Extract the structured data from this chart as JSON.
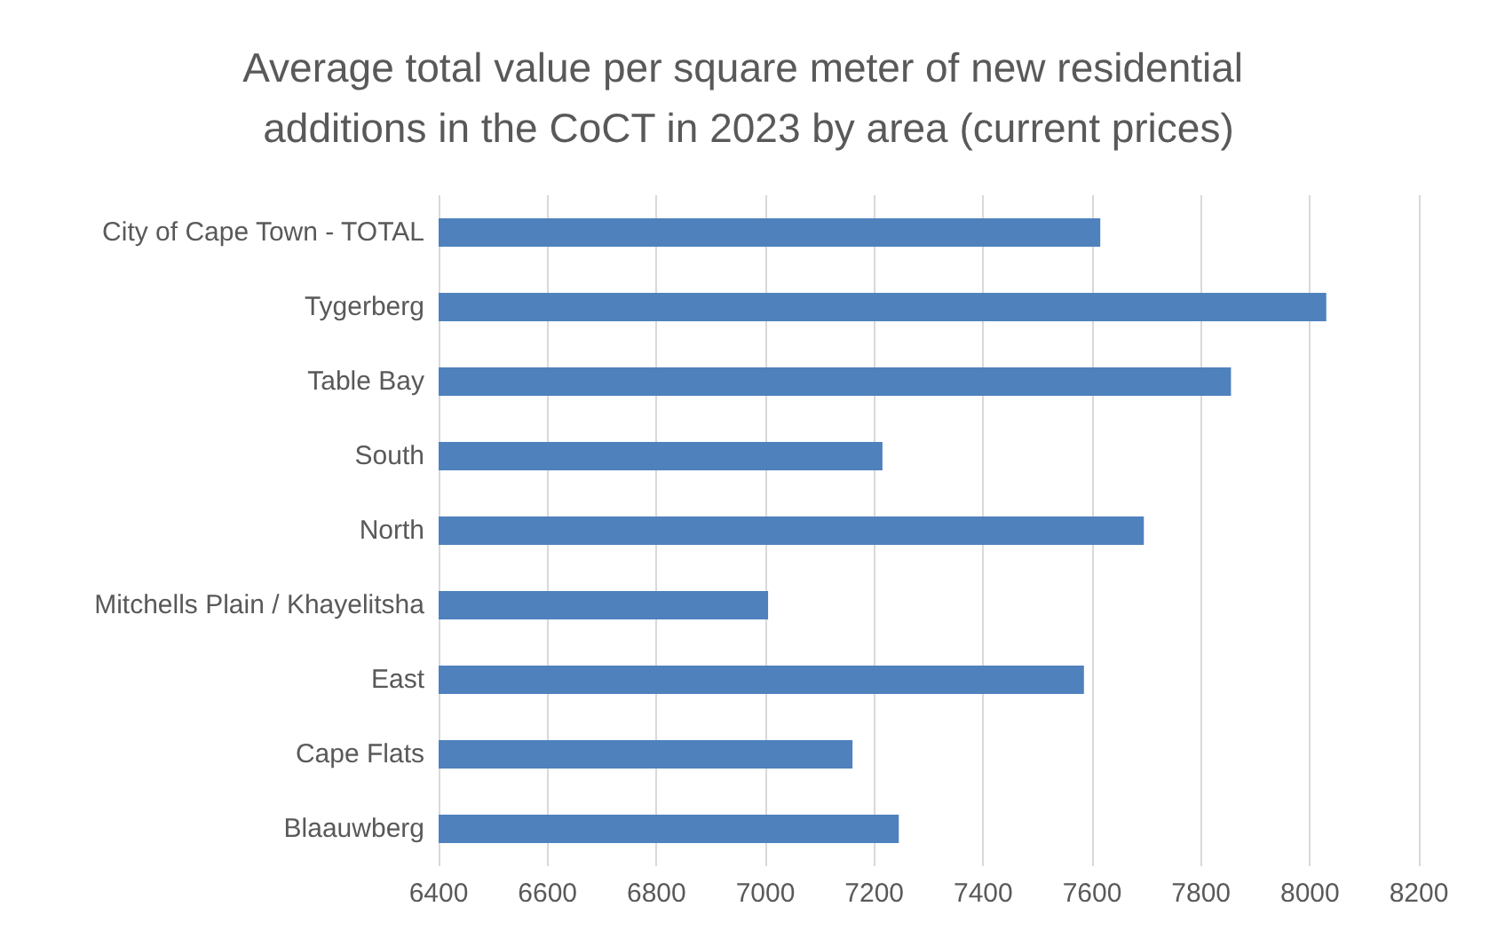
{
  "chart_data": {
    "type": "bar",
    "orientation": "horizontal",
    "title": "Average total value per square meter of new residential additions in the CoCT in 2023 by area (current prices)",
    "categories": [
      "City of Cape Town - TOTAL",
      "Tygerberg",
      "Table Bay",
      "South",
      "North",
      "Mitchells Plain / Khayelitsha",
      "East",
      "Cape Flats",
      "Blaauwberg"
    ],
    "values": [
      7615,
      8030,
      7855,
      7215,
      7695,
      7005,
      7585,
      7160,
      7245
    ],
    "color": "#4f81bd",
    "xlim": [
      6400,
      8200
    ],
    "xticks": [
      6400,
      6600,
      6800,
      7000,
      7200,
      7400,
      7600,
      7800,
      8000,
      8200
    ],
    "grid": "x"
  }
}
